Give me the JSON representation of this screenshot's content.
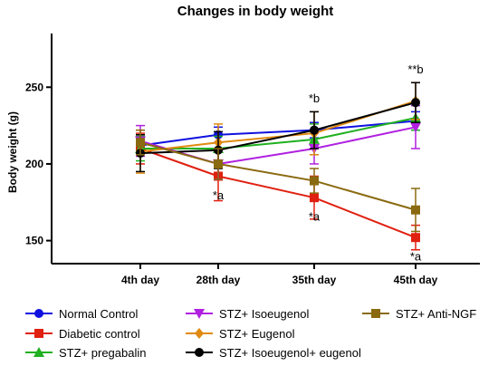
{
  "chart_data": {
    "type": "line",
    "title": "Changes in body weight",
    "xlabel": "",
    "ylabel": "Body weight (g)",
    "categories": [
      "4th day",
      "28th day",
      "35th day",
      "45th day"
    ],
    "ylim": [
      135,
      285
    ],
    "yticks": [
      150,
      200,
      250
    ],
    "grid": false,
    "legend_position": "bottom",
    "series": [
      {
        "name": "Normal Control",
        "color": "#1010e0",
        "marker": "circle",
        "values": [
          212,
          219,
          222,
          228
        ],
        "errors": [
          5,
          5,
          5,
          6
        ]
      },
      {
        "name": "Diabetic control",
        "color": "#e02010",
        "marker": "square",
        "values": [
          210,
          192,
          178,
          152
        ],
        "errors": [
          10,
          16,
          14,
          8
        ]
      },
      {
        "name": "STZ+ pregabalin",
        "color": "#20b020",
        "marker": "triangle-up",
        "values": [
          210,
          210,
          216,
          230
        ],
        "errors": [
          8,
          8,
          10,
          8
        ]
      },
      {
        "name": "STZ+ Isoeugenol",
        "color": "#b020e0",
        "marker": "triangle-down",
        "values": [
          215,
          200,
          210,
          224
        ],
        "errors": [
          10,
          10,
          10,
          14
        ]
      },
      {
        "name": "STZ+ Eugenol",
        "color": "#e08a10",
        "marker": "diamond",
        "values": [
          208,
          214,
          220,
          241
        ],
        "errors": [
          14,
          12,
          14,
          12
        ]
      },
      {
        "name": "STZ+ Isoeugenol+ eugenol",
        "color": "#000000",
        "marker": "circle",
        "values": [
          207,
          209,
          222,
          240
        ],
        "errors": [
          12,
          12,
          12,
          13
        ]
      },
      {
        "name": "STZ+ Anti-NGF",
        "color": "#8a6a10",
        "marker": "square",
        "values": [
          214,
          200,
          189,
          170
        ],
        "errors": [
          8,
          10,
          8,
          14
        ]
      }
    ],
    "annotations": [
      {
        "text": "*a",
        "category": "28th day",
        "y": 180
      },
      {
        "text": "*b",
        "category": "35th day",
        "y": 243
      },
      {
        "text": "*a",
        "category": "35th day",
        "y": 166
      },
      {
        "text": "**b",
        "category": "45th day",
        "y": 262
      },
      {
        "text": "*a",
        "category": "45th day",
        "y": 140
      }
    ]
  }
}
